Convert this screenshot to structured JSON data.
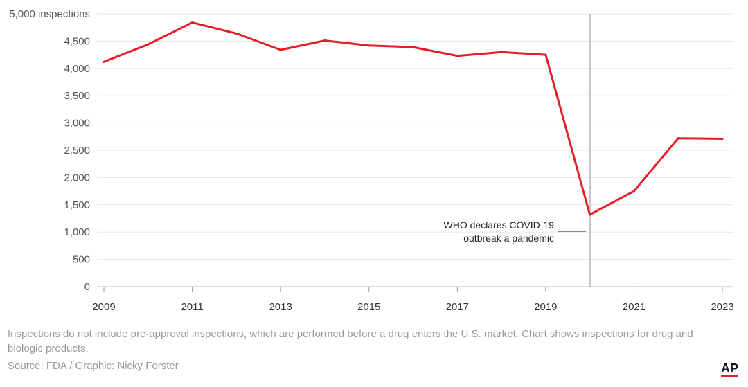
{
  "chart_data": {
    "type": "line",
    "ylabel_unit": "inspections",
    "x": [
      2009,
      2010,
      2011,
      2012,
      2013,
      2014,
      2015,
      2016,
      2017,
      2018,
      2019,
      2020,
      2021,
      2022,
      2023
    ],
    "series": [
      {
        "values": [
          4120,
          4440,
          4840,
          4640,
          4340,
          4510,
          4420,
          4390,
          4230,
          4300,
          4250,
          1320,
          1750,
          2720,
          2710
        ],
        "color": "#e41e26"
      }
    ],
    "ylim": [
      0,
      5000
    ],
    "yticks": [
      0,
      500,
      1000,
      1500,
      2000,
      2500,
      3000,
      3500,
      4000,
      4500,
      5000
    ],
    "ytick_labels": [
      "0",
      "500",
      "1,000",
      "1,500",
      "2,000",
      "2,500",
      "3,000",
      "3,500",
      "4,000",
      "4,500",
      "5,000 inspections"
    ],
    "xticks": [
      2009,
      2011,
      2013,
      2015,
      2017,
      2019,
      2021,
      2023
    ],
    "xtick_labels": [
      "2009",
      "2011",
      "2013",
      "2015",
      "2017",
      "2019",
      "2021",
      "2023"
    ],
    "xlim": [
      2009,
      2023
    ],
    "grid": true,
    "annotation": {
      "x": 2020,
      "lines": [
        "WHO declares COVID-19",
        "outbreak a pandemic"
      ]
    }
  },
  "footer": {
    "note": "Inspections do not include pre-approval inspections, which are performed before a drug enters the U.S. market. Chart shows inspections for drug and biologic products.",
    "source": "Source: FDA / Graphic: Nicky Forster",
    "logo": "AP"
  }
}
